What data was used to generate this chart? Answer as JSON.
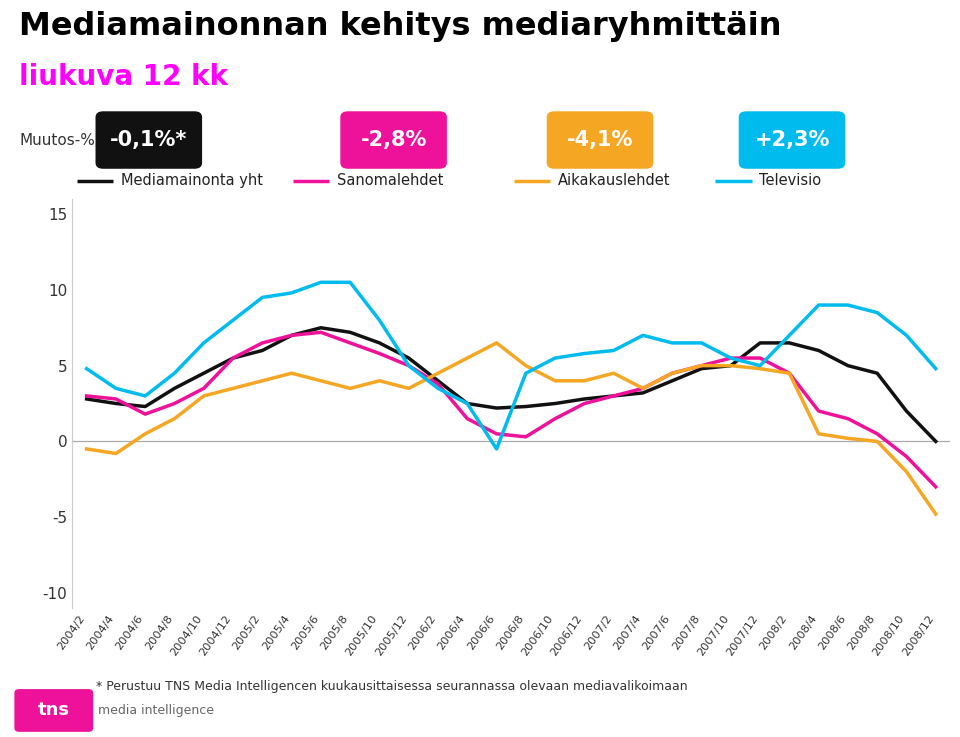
{
  "title_line1": "Mediamainonnan kehitys mediaryhmittäin",
  "title_line2": "liukuva 12 kk",
  "title_color": "#000000",
  "subtitle_color": "#ff00ff",
  "ylabel": "Muutos-%",
  "background_color": "#ffffff",
  "badge_labels": [
    "-0,1%*",
    "-2,8%",
    "-4,1%",
    "+2,3%"
  ],
  "badge_colors": [
    "#111111",
    "#ee1199",
    "#f5a623",
    "#00bbee"
  ],
  "badge_text_color": "#ffffff",
  "legend_labels": [
    "Mediamainonta yht",
    "Sanomalehdet",
    "Aikakauslehdet",
    "Televisio"
  ],
  "legend_colors": [
    "#111111",
    "#ee1199",
    "#f5a623",
    "#00bbee"
  ],
  "footnote": "* Perustuu TNS Media Intelligencen kuukausittaisessa seurannassa olevaan mediavalikoimaan",
  "ylim": [
    -11,
    16
  ],
  "yticks": [
    -10,
    -5,
    0,
    5,
    10,
    15
  ],
  "x_labels": [
    "2004/2",
    "2004/4",
    "2004/6",
    "2004/8",
    "2004/10",
    "2004/12",
    "2005/2",
    "2005/4",
    "2005/6",
    "2005/8",
    "2005/10",
    "2005/12",
    "2006/2",
    "2006/4",
    "2006/6",
    "2006/8",
    "2006/10",
    "2006/12",
    "2007/2",
    "2007/4",
    "2007/6",
    "2007/8",
    "2007/10",
    "2007/12",
    "2008/2",
    "2008/4",
    "2008/6",
    "2008/8",
    "2008/10",
    "2008/12"
  ],
  "mediamainonta": [
    2.8,
    2.5,
    2.3,
    3.5,
    4.5,
    5.5,
    6.0,
    7.0,
    7.5,
    7.2,
    6.5,
    5.5,
    4.0,
    2.5,
    2.2,
    2.3,
    2.5,
    2.8,
    3.0,
    3.2,
    4.0,
    4.8,
    5.0,
    6.5,
    6.5,
    6.0,
    5.0,
    4.5,
    2.0,
    0.0
  ],
  "sanomalehdet": [
    3.0,
    2.8,
    1.8,
    2.5,
    3.5,
    5.5,
    6.5,
    7.0,
    7.2,
    6.5,
    5.8,
    5.0,
    3.8,
    1.5,
    0.5,
    0.3,
    1.5,
    2.5,
    3.0,
    3.5,
    4.5,
    5.0,
    5.5,
    5.5,
    4.5,
    2.0,
    1.5,
    0.5,
    -1.0,
    -3.0
  ],
  "aikakauslehdet": [
    -0.5,
    -0.8,
    0.5,
    1.5,
    3.0,
    3.5,
    4.0,
    4.5,
    4.0,
    3.5,
    4.0,
    3.5,
    4.5,
    5.5,
    6.5,
    5.0,
    4.0,
    4.0,
    4.5,
    3.5,
    4.5,
    5.0,
    5.0,
    4.8,
    4.5,
    0.5,
    0.2,
    0.0,
    -2.0,
    -4.8
  ],
  "televisio": [
    4.8,
    3.5,
    3.0,
    4.5,
    6.5,
    8.0,
    9.5,
    9.8,
    10.5,
    10.5,
    8.0,
    5.0,
    3.5,
    2.5,
    -0.5,
    4.5,
    5.5,
    5.8,
    6.0,
    7.0,
    6.5,
    6.5,
    5.5,
    5.0,
    7.0,
    9.0,
    9.0,
    8.5,
    7.0,
    4.8
  ],
  "tns_color": "#ee1199",
  "tns_text_color": "#ffffff",
  "footnote_color": "#333333",
  "axis_label_color": "#333333",
  "zero_line_color": "#aaaaaa"
}
